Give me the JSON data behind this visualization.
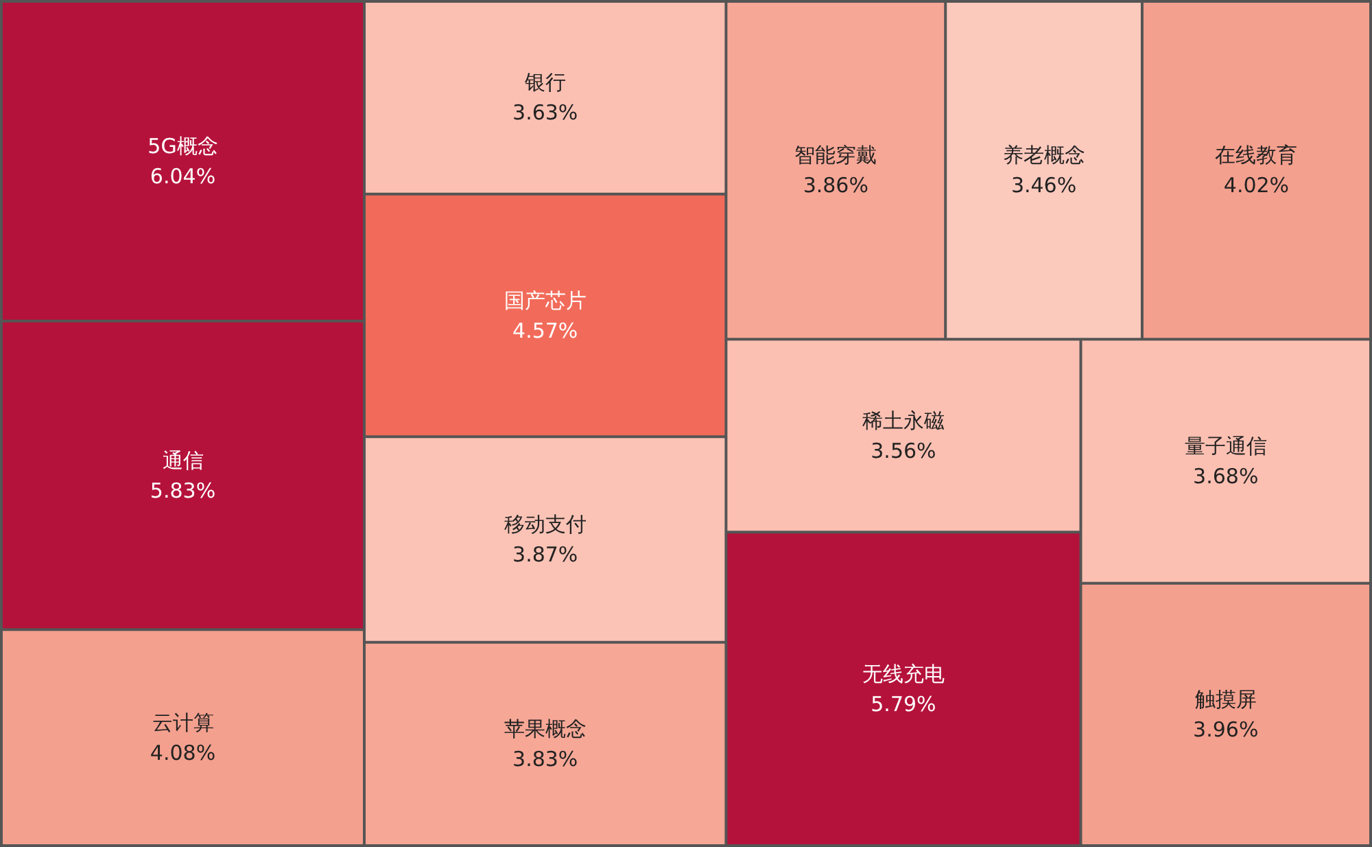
{
  "chart_data": {
    "type": "other",
    "categories": [
      "5G概念",
      "通信",
      "云计算",
      "银行",
      "国产芯片",
      "移动支付",
      "苹果概念",
      "智能穿戴",
      "养老概念",
      "在线教育",
      "稀土永磁",
      "无线充电",
      "量子通信",
      "触摸屏"
    ],
    "values": [
      6.04,
      5.83,
      4.08,
      3.63,
      4.57,
      3.87,
      3.83,
      3.86,
      3.46,
      4.02,
      3.56,
      5.79,
      3.68,
      3.96
    ],
    "value_labels": [
      "6.04%",
      "5.83%",
      "4.08%",
      "3.63%",
      "4.57%",
      "3.87%",
      "3.83%",
      "3.86%",
      "3.46%",
      "4.02%",
      "3.56%",
      "5.79%",
      "3.68%",
      "3.96%"
    ],
    "colors": [
      "#b5123b",
      "#b5123b",
      "#f4a08e",
      "#fcc0b2",
      "#f26b5a",
      "#fbc3b5",
      "#f7a796",
      "#f7a796",
      "#fcc9bd",
      "#f4a08e",
      "#fcc0b2",
      "#b5123b",
      "#fcc0b2",
      "#f4a08e"
    ]
  }
}
